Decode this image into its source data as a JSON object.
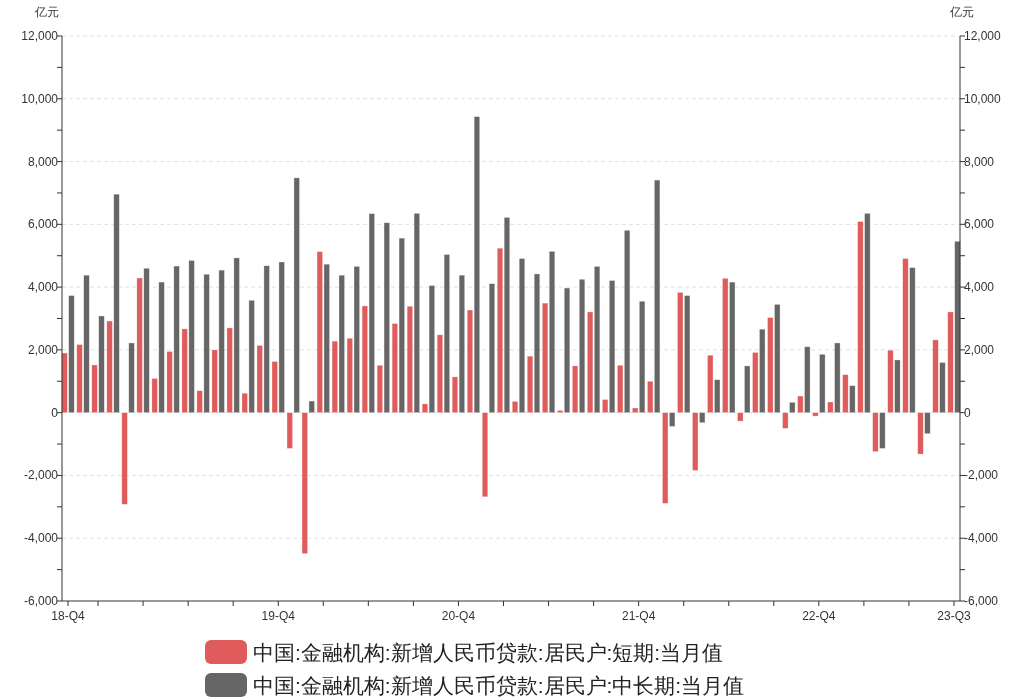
{
  "chart_data": {
    "type": "bar",
    "ylabel": "亿元",
    "y2label": "亿元",
    "categories": [
      "18-Q4",
      null,
      null,
      null,
      null,
      null,
      null,
      null,
      null,
      null,
      null,
      null,
      null,
      null,
      "19-Q4",
      null,
      null,
      null,
      null,
      null,
      null,
      null,
      null,
      null,
      null,
      null,
      "20-Q4",
      null,
      null,
      null,
      null,
      null,
      null,
      null,
      null,
      null,
      null,
      null,
      "21-Q4",
      null,
      null,
      null,
      null,
      null,
      null,
      null,
      null,
      null,
      null,
      null,
      "22-Q4",
      null,
      null,
      null,
      null,
      null,
      null,
      null,
      null,
      "23-Q3"
    ],
    "series": [
      {
        "name": "中国:金融机构:新增人民币贷款:居民户:短期:当月值",
        "color": "#e05b5b",
        "values": [
          1900,
          2170,
          1520,
          2920,
          -2920,
          4290,
          1090,
          1950,
          2670,
          700,
          2000,
          2700,
          620,
          2140,
          1630,
          -1140,
          -4490,
          5130,
          2280,
          2370,
          3400,
          1510,
          2840,
          3390,
          280,
          2480,
          1140,
          3270,
          -2680,
          5240,
          360,
          1800,
          3490,
          70,
          1490,
          3210,
          420,
          1510,
          150,
          1000,
          -2890,
          3830,
          -1840,
          1830,
          4280,
          -270,
          1920,
          3030,
          -500,
          530,
          -110,
          340,
          1210,
          6090,
          -1240,
          1990,
          4910,
          -1320,
          2320,
          3210
        ]
      },
      {
        "name": "中国:金融机构:新增人民币贷款:居民户:中长期:当月值",
        "color": "#666666",
        "values": [
          3730,
          4380,
          3080,
          6960,
          2220,
          4600,
          4160,
          4670,
          4850,
          4410,
          4540,
          4930,
          3580,
          4680,
          4800,
          7480,
          370,
          4730,
          4380,
          4660,
          6340,
          6050,
          5560,
          6350,
          4050,
          5040,
          4380,
          9430,
          4110,
          6220,
          4910,
          4420,
          5140,
          3970,
          4250,
          4660,
          4210,
          5810,
          3550,
          7410,
          -440,
          3730,
          -320,
          1050,
          4160,
          1490,
          2660,
          3450,
          330,
          2100,
          1860,
          2220,
          860,
          6350,
          -1140,
          1680,
          4620,
          -670,
          1600,
          5460
        ]
      }
    ],
    "ylim": [
      -6000,
      12000
    ],
    "yticks": [
      {
        "value": -6000,
        "label": "-6,000"
      },
      {
        "value": -5000,
        "label": null
      },
      {
        "value": -4000,
        "label": "-4,000"
      },
      {
        "value": -3000,
        "label": null
      },
      {
        "value": -2000,
        "label": "-2,000"
      },
      {
        "value": -1000,
        "label": null
      },
      {
        "value": 0,
        "label": "0"
      },
      {
        "value": 1000,
        "label": null
      },
      {
        "value": 2000,
        "label": "2,000"
      },
      {
        "value": 3000,
        "label": null
      },
      {
        "value": 4000,
        "label": "4,000"
      },
      {
        "value": 5000,
        "label": null
      },
      {
        "value": 6000,
        "label": "6,000"
      },
      {
        "value": 7000,
        "label": null
      },
      {
        "value": 8000,
        "label": "8,000"
      },
      {
        "value": 9000,
        "label": null
      },
      {
        "value": 10000,
        "label": "10,000"
      },
      {
        "value": 11000,
        "label": null
      },
      {
        "value": 12000,
        "label": "12,000"
      }
    ],
    "y2lim": [
      -6000,
      12000
    ],
    "y2ticks": [
      {
        "value": -6000,
        "label": "-6,000"
      },
      {
        "value": -5000,
        "label": null
      },
      {
        "value": -4000,
        "label": "-4,000"
      },
      {
        "value": -3000,
        "label": null
      },
      {
        "value": -2000,
        "label": "-2,000"
      },
      {
        "value": -1000,
        "label": null
      },
      {
        "value": 0,
        "label": "0"
      },
      {
        "value": 1000,
        "label": null
      },
      {
        "value": 2000,
        "label": "2,000"
      },
      {
        "value": 3000,
        "label": null
      },
      {
        "value": 4000,
        "label": "4,000"
      },
      {
        "value": 5000,
        "label": null
      },
      {
        "value": 6000,
        "label": "6,000"
      },
      {
        "value": 7000,
        "label": null
      },
      {
        "value": 8000,
        "label": "8,000"
      },
      {
        "value": 9000,
        "label": null
      },
      {
        "value": 10000,
        "label": "10,000"
      },
      {
        "value": 11000,
        "label": null
      },
      {
        "value": 12000,
        "label": "12,000"
      }
    ],
    "grid": "y",
    "legend": "bottom"
  }
}
